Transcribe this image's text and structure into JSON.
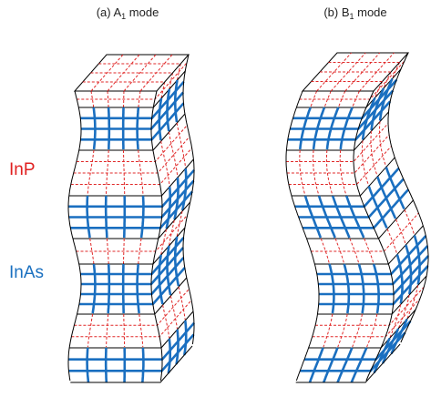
{
  "panels": [
    {
      "prefix": "(a) A",
      "sub": "1",
      "suffix": " mode"
    },
    {
      "prefix": "(b) B",
      "sub": "1",
      "suffix": " mode"
    }
  ],
  "materials": {
    "inp": "InP",
    "inas": "InAs"
  }
}
